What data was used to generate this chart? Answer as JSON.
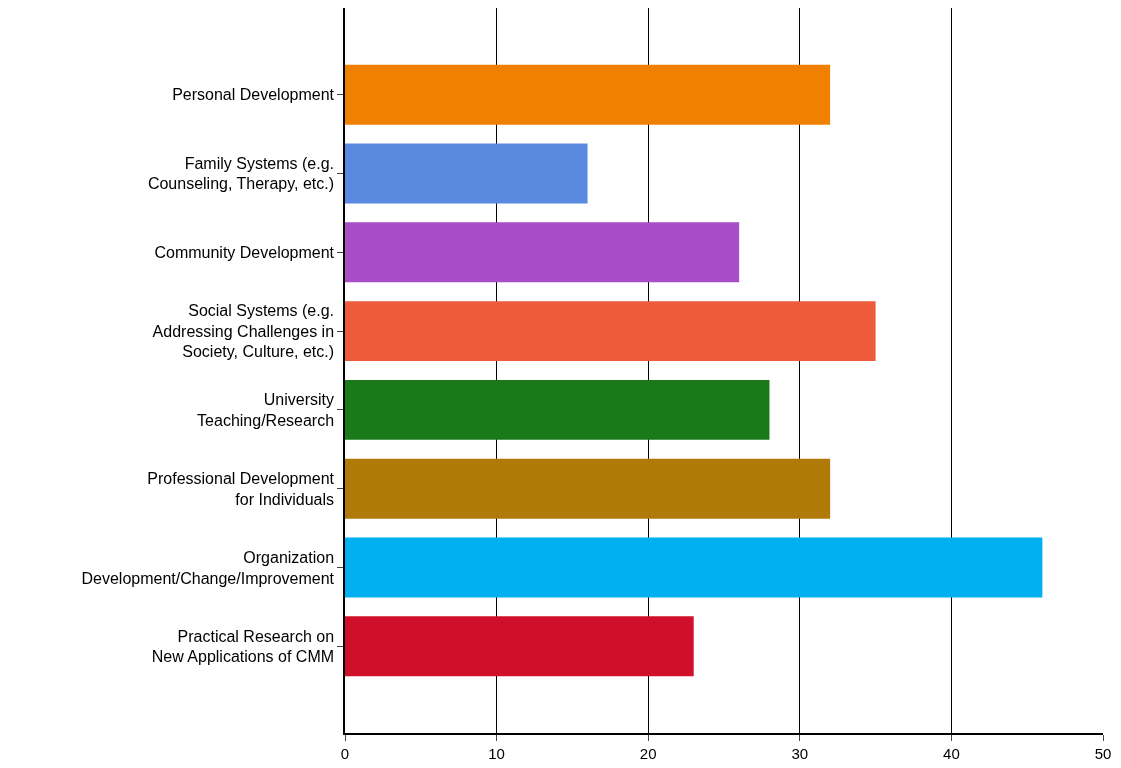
{
  "chart_data": {
    "type": "bar",
    "orientation": "horizontal",
    "categories": [
      "Personal Development",
      "Family Systems (e.g.\nCounseling, Therapy, etc.)",
      "Community Development",
      "Social Systems (e.g.\nAddressing Challenges in\nSociety, Culture, etc.)",
      "University\nTeaching/Research",
      "Professional Development\nfor Individuals",
      "Organization\nDevelopment/Change/Improvement",
      "Practical Research on\nNew Applications of CMM"
    ],
    "values": [
      32,
      16,
      26,
      35,
      28,
      32,
      46,
      23
    ],
    "colors": [
      "#f08000",
      "#5a8ae0",
      "#a94cc8",
      "#ee5a3c",
      "#1a7a1a",
      "#b07a08",
      "#00b0f0",
      "#d0102a"
    ],
    "xlim": [
      0,
      50
    ],
    "xticks": [
      0,
      10,
      20,
      30,
      40,
      50
    ],
    "grid": "x"
  }
}
